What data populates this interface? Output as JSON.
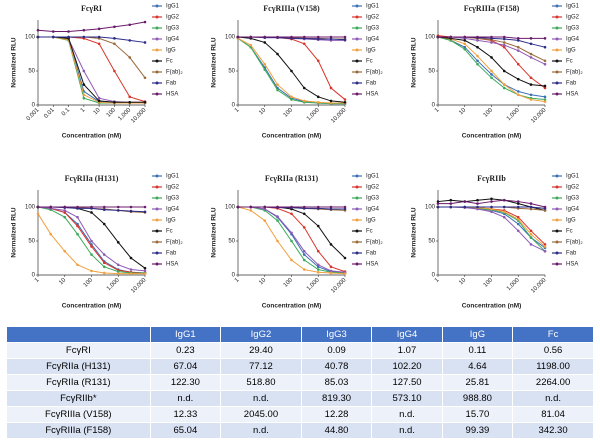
{
  "chart_data": [
    {
      "type": "line",
      "title": "FcγRI",
      "xlabel": "Concentration (nM)",
      "ylabel": "Normalized RLU",
      "xscale": "log",
      "x": [
        0.001,
        0.01,
        0.1,
        1,
        10,
        100,
        1000,
        10000
      ],
      "xlim": [
        0.001,
        10000
      ],
      "xticks": [
        0.001,
        0.01,
        0.1,
        1,
        10,
        100,
        {
          "value": 1000,
          "label": "1,000"
        },
        {
          "value": 10000,
          "label": "10,000"
        }
      ],
      "ylim": [
        0,
        125
      ],
      "yticks": [
        0,
        50,
        100
      ],
      "series": [
        {
          "name": "IgG1",
          "color": "#3a6fb5",
          "values": [
            100,
            100,
            98,
            20,
            5,
            3,
            3,
            3
          ]
        },
        {
          "name": "IgG2",
          "color": "#d9342b",
          "values": [
            100,
            100,
            100,
            98,
            90,
            50,
            12,
            5
          ]
        },
        {
          "name": "IgG3",
          "color": "#3aaa5a",
          "values": [
            100,
            100,
            95,
            10,
            3,
            3,
            3,
            3
          ]
        },
        {
          "name": "IgG4",
          "color": "#8e5ab5",
          "values": [
            100,
            100,
            97,
            50,
            10,
            5,
            4,
            4
          ]
        },
        {
          "name": "IgG",
          "color": "#f0a040",
          "values": [
            100,
            100,
            96,
            15,
            4,
            3,
            3,
            3
          ]
        },
        {
          "name": "Fc",
          "color": "#111111",
          "values": [
            100,
            100,
            98,
            30,
            6,
            4,
            4,
            4
          ]
        },
        {
          "name": "F(ab)₂",
          "color": "#9a6a3a",
          "values": [
            100,
            100,
            100,
            100,
            98,
            90,
            70,
            40
          ]
        },
        {
          "name": "Fab",
          "color": "#2b2b8a",
          "values": [
            100,
            100,
            100,
            100,
            100,
            98,
            95,
            92
          ]
        },
        {
          "name": "HSA",
          "color": "#6a1a6a",
          "values": [
            110,
            108,
            108,
            110,
            112,
            115,
            118,
            122
          ]
        }
      ]
    },
    {
      "type": "line",
      "title": "FcγRIIIa (V158)",
      "xlabel": "Concentration (nM)",
      "ylabel": "Normalized RLU",
      "xscale": "log",
      "x": [
        1,
        3,
        10,
        30,
        100,
        300,
        1000,
        3000,
        10000
      ],
      "xlim": [
        1,
        10000
      ],
      "xticks": [
        1,
        10,
        100,
        {
          "value": 1000,
          "label": "1,000"
        },
        {
          "value": 10000,
          "label": "10,000"
        }
      ],
      "ylim": [
        0,
        125
      ],
      "yticks": [
        0,
        50,
        100
      ],
      "series": [
        {
          "name": "IgG1",
          "color": "#3a6fb5",
          "values": [
            98,
            85,
            55,
            25,
            10,
            5,
            3,
            2,
            2
          ]
        },
        {
          "name": "IgG2",
          "color": "#d9342b",
          "values": [
            100,
            100,
            100,
            99,
            97,
            90,
            65,
            25,
            8
          ]
        },
        {
          "name": "IgG3",
          "color": "#3aaa5a",
          "values": [
            98,
            85,
            52,
            22,
            8,
            4,
            3,
            2,
            2
          ]
        },
        {
          "name": "IgG4",
          "color": "#8e5ab5",
          "values": [
            100,
            100,
            99,
            99,
            98,
            97,
            96,
            95,
            95
          ]
        },
        {
          "name": "IgG",
          "color": "#f0a040",
          "values": [
            98,
            88,
            60,
            30,
            12,
            6,
            4,
            3,
            3
          ]
        },
        {
          "name": "Fc",
          "color": "#111111",
          "values": [
            100,
            98,
            92,
            75,
            50,
            25,
            12,
            6,
            4
          ]
        },
        {
          "name": "F(ab)₂",
          "color": "#9a6a3a",
          "values": [
            100,
            100,
            100,
            99,
            99,
            98,
            98,
            97,
            97
          ]
        },
        {
          "name": "Fab",
          "color": "#2b2b8a",
          "values": [
            100,
            100,
            99,
            99,
            98,
            98,
            97,
            97,
            96
          ]
        },
        {
          "name": "HSA",
          "color": "#6a1a6a",
          "values": [
            100,
            100,
            100,
            100,
            100,
            100,
            100,
            100,
            100
          ]
        }
      ]
    },
    {
      "type": "line",
      "title": "FcγRIIIa (F158)",
      "xlabel": "Concentration (nM)",
      "ylabel": "Normalized RLU",
      "xscale": "log",
      "x": [
        1,
        3,
        10,
        30,
        100,
        300,
        1000,
        3000,
        10000
      ],
      "xlim": [
        1,
        10000
      ],
      "xticks": [
        1,
        10,
        100,
        {
          "value": 1000,
          "label": "1,000"
        },
        {
          "value": 10000,
          "label": "10,000"
        }
      ],
      "ylim": [
        0,
        125
      ],
      "yticks": [
        0,
        50,
        100
      ],
      "series": [
        {
          "name": "IgG1",
          "color": "#3a6fb5",
          "values": [
            100,
            95,
            85,
            65,
            45,
            30,
            20,
            15,
            12
          ]
        },
        {
          "name": "IgG2",
          "color": "#d9342b",
          "values": [
            102,
            100,
            100,
            98,
            95,
            85,
            60,
            40,
            25
          ]
        },
        {
          "name": "IgG3",
          "color": "#3aaa5a",
          "values": [
            100,
            95,
            82,
            60,
            40,
            25,
            15,
            10,
            8
          ]
        },
        {
          "name": "IgG4",
          "color": "#8e5ab5",
          "values": [
            100,
            100,
            98,
            95,
            92,
            88,
            80,
            70,
            60
          ]
        },
        {
          "name": "IgG",
          "color": "#f0a040",
          "values": [
            100,
            97,
            90,
            72,
            50,
            30,
            15,
            8,
            5
          ]
        },
        {
          "name": "Fc",
          "color": "#111111",
          "values": [
            100,
            98,
            95,
            85,
            70,
            50,
            38,
            30,
            28
          ]
        },
        {
          "name": "F(ab)₂",
          "color": "#9a6a3a",
          "values": [
            100,
            100,
            100,
            98,
            96,
            92,
            85,
            75,
            65
          ]
        },
        {
          "name": "Fab",
          "color": "#2b2b8a",
          "values": [
            100,
            100,
            100,
            99,
            98,
            97,
            95,
            90,
            85
          ]
        },
        {
          "name": "HSA",
          "color": "#6a1a6a",
          "values": [
            100,
            100,
            100,
            100,
            100,
            100,
            98,
            98,
            98
          ]
        }
      ]
    },
    {
      "type": "line",
      "title": "FcγRIIa (H131)",
      "xlabel": "Concentration (nM)",
      "ylabel": "Normalized RLU",
      "xscale": "log",
      "x": [
        1,
        3,
        10,
        30,
        100,
        300,
        1000,
        3000,
        10000
      ],
      "xlim": [
        1,
        10000
      ],
      "xticks": [
        1,
        10,
        100,
        {
          "value": 1000,
          "label": "1,000"
        },
        {
          "value": 10000,
          "label": "10,000"
        }
      ],
      "ylim": [
        0,
        125
      ],
      "yticks": [
        0,
        50,
        100
      ],
      "series": [
        {
          "name": "IgG1",
          "color": "#3a6fb5",
          "values": [
            100,
            98,
            92,
            75,
            45,
            20,
            8,
            4,
            3
          ]
        },
        {
          "name": "IgG2",
          "color": "#d9342b",
          "values": [
            100,
            98,
            92,
            72,
            42,
            18,
            7,
            4,
            3
          ]
        },
        {
          "name": "IgG3",
          "color": "#3aaa5a",
          "values": [
            100,
            96,
            85,
            60,
            30,
            12,
            5,
            3,
            3
          ]
        },
        {
          "name": "IgG4",
          "color": "#8e5ab5",
          "values": [
            100,
            98,
            95,
            85,
            50,
            30,
            15,
            8,
            6
          ]
        },
        {
          "name": "IgG",
          "color": "#f0a040",
          "values": [
            90,
            60,
            35,
            15,
            6,
            3,
            2,
            2,
            2
          ]
        },
        {
          "name": "Fc",
          "color": "#111111",
          "values": [
            100,
            100,
            100,
            98,
            92,
            75,
            48,
            25,
            10
          ]
        },
        {
          "name": "F(ab)₂",
          "color": "#9a6a3a",
          "values": [
            100,
            100,
            100,
            99,
            98,
            97,
            95,
            93,
            92
          ]
        },
        {
          "name": "Fab",
          "color": "#2b2b8a",
          "values": [
            100,
            100,
            99,
            98,
            98,
            96,
            95,
            94,
            93
          ]
        },
        {
          "name": "HSA",
          "color": "#6a1a6a",
          "values": [
            100,
            100,
            100,
            100,
            100,
            100,
            100,
            100,
            100
          ]
        }
      ]
    },
    {
      "type": "line",
      "title": "FcγRIIa (R131)",
      "xlabel": "Concentration (nM)",
      "ylabel": "Normalized RLU",
      "xscale": "log",
      "x": [
        1,
        3,
        10,
        30,
        100,
        300,
        1000,
        3000,
        10000
      ],
      "xlim": [
        1,
        10000
      ],
      "xticks": [
        1,
        10,
        100,
        {
          "value": 1000,
          "label": "1,000"
        },
        {
          "value": 10000,
          "label": "10,000"
        }
      ],
      "ylim": [
        0,
        125
      ],
      "yticks": [
        0,
        50,
        100
      ],
      "series": [
        {
          "name": "IgG1",
          "color": "#3a6fb5",
          "values": [
            100,
            100,
            97,
            85,
            60,
            30,
            12,
            5,
            3
          ]
        },
        {
          "name": "IgG2",
          "color": "#d9342b",
          "values": [
            100,
            100,
            100,
            98,
            90,
            70,
            35,
            12,
            5
          ]
        },
        {
          "name": "IgG3",
          "color": "#3aaa5a",
          "values": [
            100,
            100,
            95,
            80,
            50,
            22,
            8,
            4,
            3
          ]
        },
        {
          "name": "IgG4",
          "color": "#8e5ab5",
          "values": [
            100,
            100,
            97,
            86,
            62,
            35,
            15,
            6,
            4
          ]
        },
        {
          "name": "IgG",
          "color": "#f0a040",
          "values": [
            100,
            95,
            80,
            50,
            22,
            8,
            4,
            3,
            2
          ]
        },
        {
          "name": "Fc",
          "color": "#111111",
          "values": [
            100,
            100,
            100,
            100,
            97,
            90,
            72,
            45,
            25
          ]
        },
        {
          "name": "F(ab)₂",
          "color": "#9a6a3a",
          "values": [
            100,
            100,
            100,
            100,
            99,
            98,
            97,
            96,
            95
          ]
        },
        {
          "name": "Fab",
          "color": "#2b2b8a",
          "values": [
            100,
            100,
            100,
            99,
            99,
            98,
            98,
            97,
            97
          ]
        },
        {
          "name": "HSA",
          "color": "#6a1a6a",
          "values": [
            100,
            100,
            100,
            100,
            100,
            100,
            100,
            100,
            100
          ]
        }
      ]
    },
    {
      "type": "line",
      "title": "FcγRIIb",
      "xlabel": "Concentration (nM)",
      "ylabel": "Normalized RLU",
      "xscale": "log",
      "x": [
        1,
        3,
        10,
        30,
        100,
        300,
        1000,
        3000,
        10000
      ],
      "xlim": [
        1,
        10000
      ],
      "xticks": [
        1,
        10,
        100,
        {
          "value": 1000,
          "label": "1,000"
        },
        {
          "value": 10000,
          "label": "10,000"
        }
      ],
      "ylim": [
        0,
        125
      ],
      "yticks": [
        0,
        50,
        100
      ],
      "series": [
        {
          "name": "IgG1",
          "color": "#3a6fb5",
          "values": [
            100,
            100,
            100,
            98,
            95,
            90,
            75,
            55,
            40
          ]
        },
        {
          "name": "IgG2",
          "color": "#d9342b",
          "values": [
            100,
            100,
            100,
            99,
            97,
            95,
            85,
            65,
            45
          ]
        },
        {
          "name": "IgG3",
          "color": "#3aaa5a",
          "values": [
            100,
            100,
            100,
            98,
            96,
            92,
            80,
            55,
            35
          ]
        },
        {
          "name": "IgG4",
          "color": "#8e5ab5",
          "values": [
            100,
            100,
            99,
            97,
            93,
            85,
            65,
            45,
            35
          ]
        },
        {
          "name": "IgG",
          "color": "#f0a040",
          "values": [
            100,
            100,
            100,
            99,
            97,
            93,
            82,
            60,
            42
          ]
        },
        {
          "name": "Fc",
          "color": "#111111",
          "values": [
            108,
            110,
            108,
            110,
            112,
            110,
            105,
            100,
            95
          ]
        },
        {
          "name": "F(ab)₂",
          "color": "#9a6a3a",
          "values": [
            100,
            100,
            100,
            100,
            100,
            100,
            98,
            97,
            95
          ]
        },
        {
          "name": "Fab",
          "color": "#2b2b8a",
          "values": [
            100,
            100,
            100,
            100,
            100,
            100,
            100,
            100,
            98
          ]
        },
        {
          "name": "HSA",
          "color": "#6a1a6a",
          "values": [
            105,
            105,
            108,
            105,
            108,
            110,
            108,
            105,
            100
          ]
        }
      ]
    }
  ],
  "table": {
    "columns": [
      "IgG1",
      "IgG2",
      "IgG3",
      "IgG4",
      "IgG",
      "Fc"
    ],
    "rows": [
      {
        "label": "FcγRI",
        "cells": [
          "0.23",
          "29.40",
          "0.09",
          "1.07",
          "0.11",
          "0.56"
        ]
      },
      {
        "label": "FcγRIIa (H131)",
        "cells": [
          "67.04",
          "77.12",
          "40.78",
          "102.20",
          "4.64",
          "1198.00"
        ]
      },
      {
        "label": "FcγRIIa (R131)",
        "cells": [
          "122.30",
          "518.80",
          "85.03",
          "127.50",
          "25.81",
          "2264.00"
        ]
      },
      {
        "label": "FcγRIIb*",
        "cells": [
          "n.d.",
          "n.d.",
          "819.30",
          "573.10",
          "988.80",
          "n.d."
        ]
      },
      {
        "label": "FcγRIIIa (V158)",
        "cells": [
          "12.33",
          "2045.00",
          "12.28",
          "n.d.",
          "15.70",
          "81.04"
        ]
      },
      {
        "label": "FcγRIIIa (F158)",
        "cells": [
          "65.04",
          "n.d.",
          "44.80",
          "n.d.",
          "99.39",
          "342.30"
        ]
      }
    ]
  }
}
